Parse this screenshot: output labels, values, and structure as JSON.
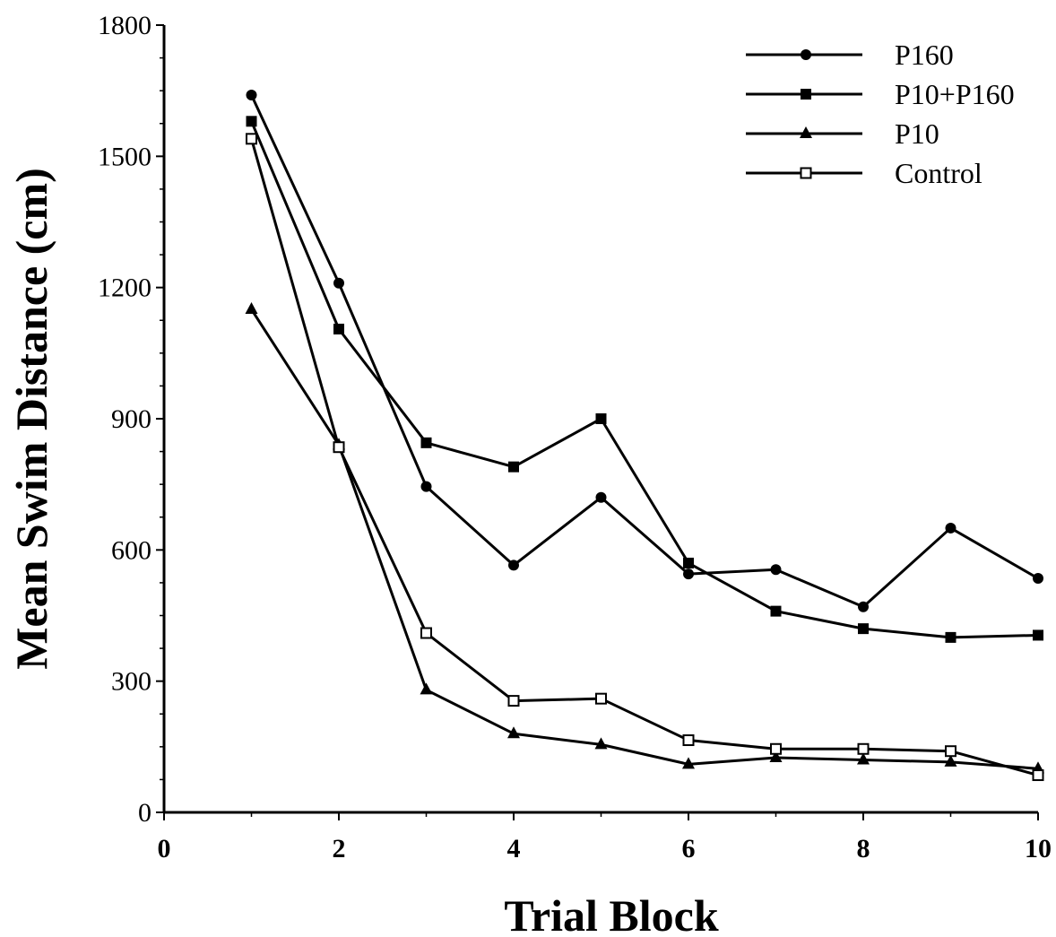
{
  "chart_data": {
    "type": "line",
    "title": "",
    "xlabel": "Trial Block",
    "ylabel": "Mean Swim Distance (cm)",
    "xlim": [
      0,
      10
    ],
    "ylim": [
      0,
      1800
    ],
    "xticks": [
      0,
      2,
      4,
      6,
      8,
      10
    ],
    "yticks": [
      0,
      300,
      600,
      900,
      1200,
      1500,
      1800
    ],
    "grid": false,
    "legend_position": "top-right",
    "x": [
      1,
      2,
      3,
      4,
      5,
      6,
      7,
      8,
      9,
      10
    ],
    "series": [
      {
        "name": "P160",
        "marker": "filled-circle",
        "values": [
          1640,
          1210,
          745,
          565,
          720,
          545,
          555,
          470,
          650,
          535
        ]
      },
      {
        "name": "P10+P160",
        "marker": "filled-square",
        "values": [
          1580,
          1105,
          845,
          790,
          900,
          570,
          460,
          420,
          400,
          405
        ]
      },
      {
        "name": "P10",
        "marker": "filled-triangle",
        "values": [
          1150,
          840,
          280,
          180,
          155,
          110,
          125,
          120,
          115,
          100
        ]
      },
      {
        "name": "Control",
        "marker": "open-square",
        "values": [
          1540,
          835,
          410,
          255,
          260,
          165,
          145,
          145,
          140,
          85
        ]
      }
    ]
  }
}
